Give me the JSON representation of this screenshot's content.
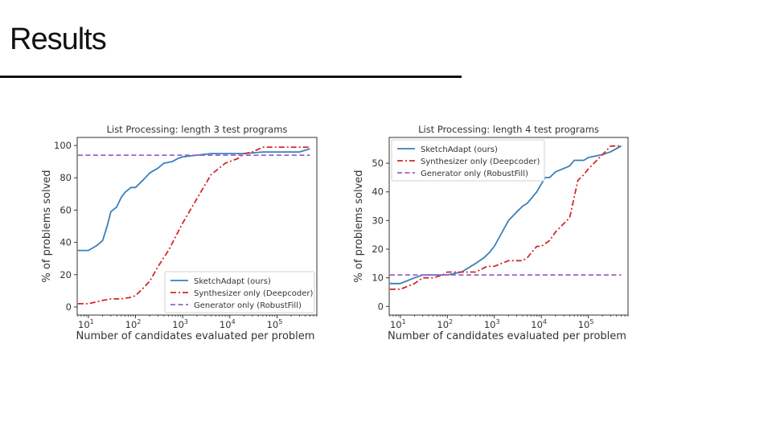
{
  "slide": {
    "title": "Results"
  },
  "chart_data": [
    {
      "type": "line",
      "title": "List Processing: length 3 test programs",
      "xlabel": "Number of candidates evaluated per problem",
      "ylabel": "% of problems solved",
      "xscale": "log",
      "xlim": [
        5.8,
        700000
      ],
      "ylim": [
        -5,
        105
      ],
      "xticks": [
        10,
        100,
        1000,
        10000,
        100000
      ],
      "xtick_labels": [
        [
          "10",
          "1"
        ],
        [
          "10",
          "2"
        ],
        [
          "10",
          "3"
        ],
        [
          "10",
          "4"
        ],
        [
          "10",
          "5"
        ]
      ],
      "yticks": [
        0,
        20,
        40,
        60,
        80,
        100
      ],
      "ytick_labels": [
        "0",
        "20",
        "40",
        "60",
        "80",
        "100"
      ],
      "grid": false,
      "legend_position": "lower-right",
      "series": [
        {
          "name": "SketchAdapt (ours)",
          "color": "#3a80ba",
          "style": "solid",
          "x": [
            6,
            10,
            15,
            20,
            25,
            30,
            40,
            50,
            60,
            80,
            100,
            150,
            200,
            300,
            400,
            600,
            800,
            1000,
            2000,
            4000,
            10000,
            20000,
            50000,
            100000,
            300000,
            500000
          ],
          "y": [
            35,
            35,
            38,
            41,
            50,
            59,
            62,
            68,
            71,
            74,
            74,
            79,
            83,
            86,
            89,
            90,
            92,
            93,
            94,
            95,
            95,
            95,
            96,
            96,
            96,
            98
          ]
        },
        {
          "name": "Synthesizer only (Deepcoder)",
          "color": "#d62728",
          "style": "dashdot",
          "x": [
            6,
            10,
            20,
            30,
            50,
            80,
            100,
            150,
            200,
            300,
            500,
            1000,
            2000,
            4000,
            8000,
            15000,
            20000,
            30000,
            50000,
            100000,
            300000,
            500000
          ],
          "y": [
            2,
            2,
            4,
            5,
            5,
            6,
            7,
            12,
            16,
            25,
            35,
            52,
            67,
            82,
            89,
            92,
            95,
            96,
            99,
            99,
            99,
            99
          ]
        },
        {
          "name": "Generator only (RobustFill)",
          "color": "#9a62cc",
          "style": "dashed",
          "x": [
            6,
            500000
          ],
          "y": [
            94,
            94
          ]
        }
      ]
    },
    {
      "type": "line",
      "title": "List Processing: length 4 test programs",
      "xlabel": "Number of candidates evaluated per problem",
      "ylabel": "% of problems solved",
      "xscale": "log",
      "xlim": [
        5.8,
        700000
      ],
      "ylim": [
        -3,
        59
      ],
      "xticks": [
        10,
        100,
        1000,
        10000,
        100000
      ],
      "xtick_labels": [
        [
          "10",
          "1"
        ],
        [
          "10",
          "2"
        ],
        [
          "10",
          "3"
        ],
        [
          "10",
          "4"
        ],
        [
          "10",
          "5"
        ]
      ],
      "yticks": [
        0,
        10,
        20,
        30,
        40,
        50
      ],
      "ytick_labels": [
        "0",
        "10",
        "20",
        "30",
        "40",
        "50"
      ],
      "grid": false,
      "legend_position": "upper-left",
      "series": [
        {
          "name": "SketchAdapt (ours)",
          "color": "#3a80ba",
          "style": "solid",
          "x": [
            6,
            10,
            20,
            30,
            50,
            100,
            200,
            400,
            600,
            800,
            1000,
            2000,
            3000,
            4000,
            5000,
            8000,
            12000,
            15000,
            20000,
            40000,
            50000,
            80000,
            100000,
            200000,
            300000,
            500000
          ],
          "y": [
            8,
            8,
            10,
            11,
            11,
            11,
            12,
            15,
            17,
            19,
            21,
            30,
            33,
            35,
            36,
            40,
            45,
            45,
            47,
            49,
            51,
            51,
            52,
            53,
            54,
            56
          ]
        },
        {
          "name": "Synthesizer only (Deepcoder)",
          "color": "#d62728",
          "style": "dashdot",
          "x": [
            6,
            10,
            20,
            30,
            50,
            80,
            100,
            200,
            400,
            700,
            1000,
            2000,
            4000,
            5000,
            8000,
            10000,
            15000,
            20000,
            40000,
            60000,
            80000,
            100000,
            200000,
            300000,
            500000
          ],
          "y": [
            6,
            6,
            8,
            10,
            10,
            11,
            12,
            12,
            12,
            14,
            14,
            16,
            16,
            17,
            21,
            21,
            23,
            26,
            31,
            44,
            46,
            48,
            53,
            56,
            56
          ]
        },
        {
          "name": "Generator only (RobustFill)",
          "color": "#9a62cc",
          "style": "dashed",
          "x": [
            6,
            500000
          ],
          "y": [
            11,
            11
          ]
        }
      ]
    }
  ]
}
